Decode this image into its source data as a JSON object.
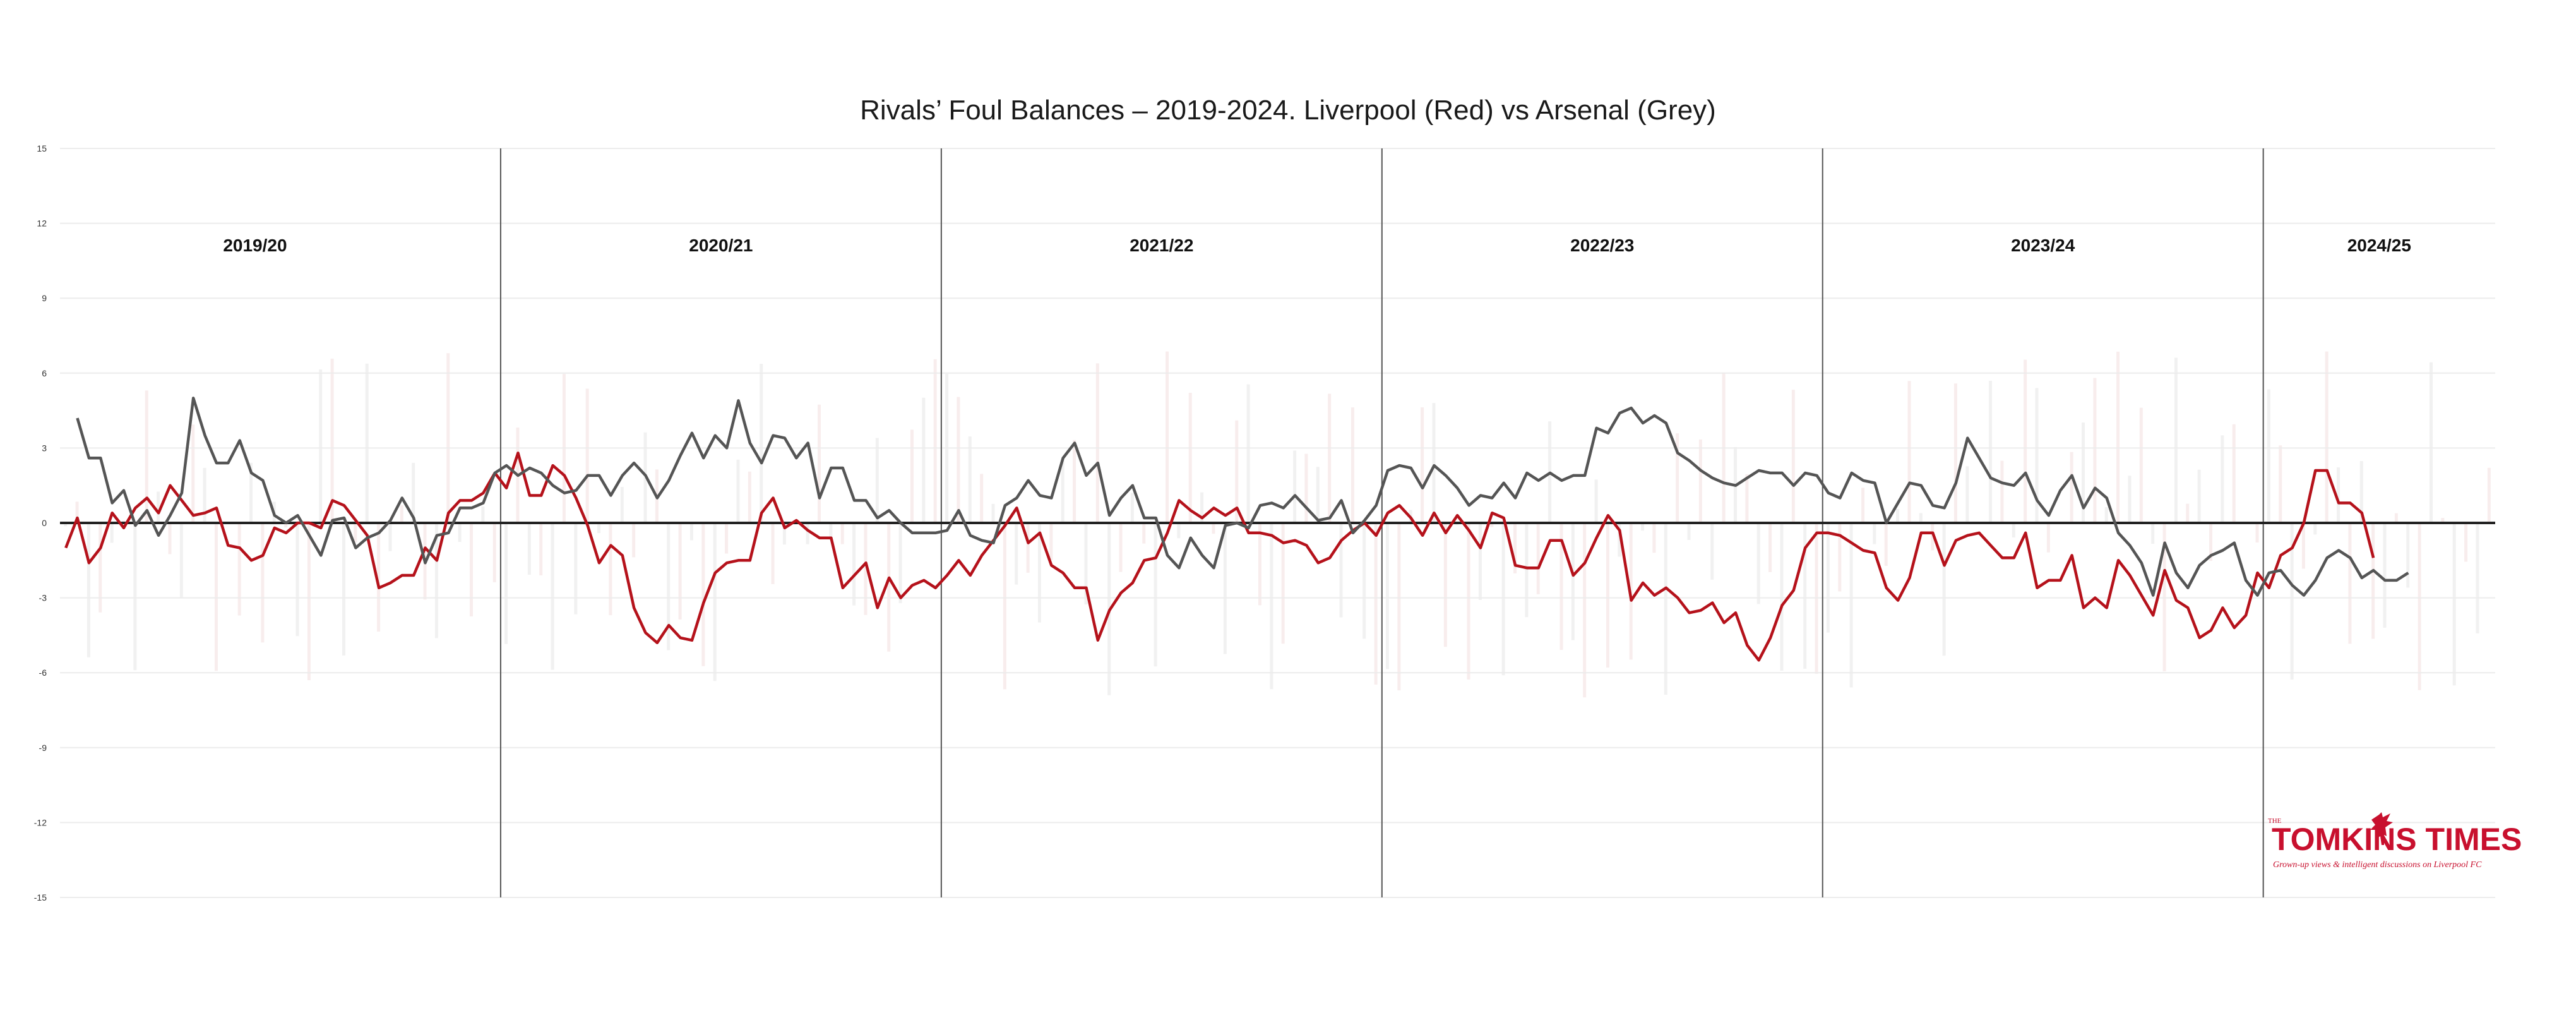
{
  "chart_data": {
    "type": "line",
    "title": "Rivals’ Foul Balances – 2019-2024. Liverpool (Red) vs Arsenal (Grey)",
    "xlabel": "",
    "ylabel": "",
    "ylim": [
      -15,
      15
    ],
    "yticks": [
      15,
      12,
      9,
      6,
      3,
      0,
      -3,
      -6,
      -9,
      -12,
      -15
    ],
    "grid": true,
    "seasons": [
      "2019/20",
      "2020/21",
      "2021/22",
      "2022/23",
      "2023/24",
      "2024/25"
    ],
    "season_boundaries_match_index": [
      38,
      76,
      114,
      152,
      190
    ],
    "total_matches": 210,
    "series": [
      {
        "color": "#b5121b",
        "values": [
          -1.0,
          0.2,
          -1.6,
          -1.0,
          0.4,
          -0.2,
          0.6,
          1.0,
          0.4,
          1.5,
          0.9,
          0.3,
          0.4,
          0.6,
          -0.9,
          -1.0,
          -1.5,
          -1.3,
          -0.2,
          -0.4,
          0.0,
          0.0,
          -0.2,
          0.9,
          0.7,
          0.1,
          -0.5,
          -2.6,
          -2.4,
          -2.1,
          -2.1,
          -1.0,
          -1.5,
          0.4,
          0.9,
          0.9,
          1.2,
          2.0,
          1.4,
          2.8,
          1.1,
          1.1,
          2.3,
          1.9,
          1.0,
          -0.1,
          -1.6,
          -0.9,
          -1.3,
          -3.4,
          -4.4,
          -4.8,
          -4.1,
          -4.6,
          -4.7,
          -3.2,
          -2.0,
          -1.6,
          -1.5,
          -1.5,
          0.4,
          1.0,
          -0.2,
          0.1,
          -0.3,
          -0.6,
          -0.6,
          -2.6,
          -2.1,
          -1.6,
          -3.4,
          -2.2,
          -3.0,
          -2.5,
          -2.3,
          -2.6,
          -2.1,
          -1.5,
          -2.1,
          -1.3,
          -0.7,
          -0.1,
          0.6,
          -0.8,
          -0.4,
          -1.7,
          -2.0,
          -2.6,
          -2.6,
          -4.7,
          -3.5,
          -2.8,
          -2.4,
          -1.5,
          -1.4,
          -0.4,
          0.9,
          0.5,
          0.2,
          0.6,
          0.3,
          0.6,
          -0.4,
          -0.4,
          -0.5,
          -0.8,
          -0.7,
          -0.9,
          -1.6,
          -1.4,
          -0.7,
          -0.3,
          0.0,
          -0.5,
          0.4,
          0.7,
          0.2,
          -0.5,
          0.4,
          -0.4,
          0.3,
          -0.3,
          -1.0,
          0.4,
          0.2,
          -1.7,
          -1.8,
          -1.8,
          -0.7,
          -0.7,
          -2.1,
          -1.6,
          -0.6,
          0.3,
          -0.3,
          -3.1,
          -2.4,
          -2.9,
          -2.6,
          -3.0,
          -3.6,
          -3.5,
          -3.2,
          -4.0,
          -3.6,
          -4.9,
          -5.5,
          -4.6,
          -3.3,
          -2.7,
          -1.0,
          -0.4,
          -0.4,
          -0.5,
          -0.8,
          -1.1,
          -1.2,
          -2.6,
          -3.1,
          -2.2,
          -0.4,
          -0.4,
          -1.7,
          -0.7,
          -0.5,
          -0.4,
          -0.9,
          -1.4,
          -1.4,
          -0.4,
          -2.6,
          -2.3,
          -2.3,
          -1.3,
          -3.4,
          -3.0,
          -3.4,
          -1.5,
          -2.1,
          -2.9,
          -3.7,
          -1.9,
          -3.1,
          -3.4,
          -4.6,
          -4.3,
          -3.4,
          -4.2,
          -3.7,
          -2.0,
          -2.6,
          -1.3,
          -1.0,
          0.0,
          2.1,
          2.1,
          0.8,
          0.8,
          0.4,
          -1.4
        ]
      },
      {
        "color": "#555555",
        "values": [
          4.2,
          2.6,
          2.6,
          0.8,
          1.3,
          -0.1,
          0.5,
          -0.5,
          0.3,
          1.2,
          5.0,
          3.5,
          2.4,
          2.4,
          3.3,
          2.0,
          1.7,
          0.3,
          -0.0,
          0.3,
          -0.5,
          -1.3,
          0.1,
          0.2,
          -1.0,
          -0.6,
          -0.4,
          0.1,
          1.0,
          0.2,
          -1.6,
          -0.5,
          -0.4,
          0.6,
          0.6,
          0.8,
          2.0,
          2.3,
          1.9,
          2.2,
          2.0,
          1.5,
          1.2,
          1.3,
          1.9,
          1.9,
          1.1,
          1.9,
          2.4,
          1.9,
          1.0,
          1.7,
          2.7,
          3.6,
          2.6,
          3.5,
          3.0,
          4.9,
          3.2,
          2.4,
          3.5,
          3.4,
          2.6,
          3.2,
          1.0,
          2.2,
          2.2,
          0.9,
          0.9,
          0.2,
          0.5,
          0.0,
          -0.4,
          -0.4,
          -0.4,
          -0.3,
          0.5,
          -0.5,
          -0.7,
          -0.8,
          0.7,
          1.0,
          1.7,
          1.1,
          1.0,
          2.6,
          3.2,
          1.9,
          2.4,
          0.3,
          1.0,
          1.5,
          0.2,
          0.2,
          -1.3,
          -1.8,
          -0.6,
          -1.3,
          -1.8,
          -0.1,
          0.0,
          -0.2,
          0.7,
          0.8,
          0.6,
          1.1,
          0.6,
          0.1,
          0.2,
          0.9,
          -0.4,
          0.1,
          0.7,
          2.1,
          2.3,
          2.2,
          1.4,
          2.3,
          1.9,
          1.4,
          0.7,
          1.1,
          1.0,
          1.6,
          1.0,
          2.0,
          1.7,
          2.0,
          1.7,
          1.9,
          1.9,
          3.8,
          3.6,
          4.4,
          4.6,
          4.0,
          4.3,
          4.0,
          2.8,
          2.5,
          2.1,
          1.8,
          1.6,
          1.5,
          1.8,
          2.1,
          2.0,
          2.0,
          1.5,
          2.0,
          1.9,
          1.2,
          1.0,
          2.0,
          1.7,
          1.6,
          0.0,
          0.8,
          1.6,
          1.5,
          0.7,
          0.6,
          1.6,
          3.4,
          2.6,
          1.8,
          1.6,
          1.5,
          2.0,
          0.9,
          0.3,
          1.3,
          1.9,
          0.6,
          1.4,
          1.0,
          -0.4,
          -0.9,
          -1.6,
          -2.9,
          -0.8,
          -2.0,
          -2.6,
          -1.7,
          -1.3,
          -1.1,
          -0.8,
          -2.3,
          -2.9,
          -2.0,
          -1.9,
          -2.5,
          -2.9,
          -2.3,
          -1.4,
          -1.1,
          -1.4,
          -2.2,
          -1.9,
          -2.3,
          -2.3,
          -2.0
        ]
      }
    ]
  },
  "logo": {
    "the": "THE",
    "name": "TOMKINS TIMES",
    "tagline": "Grown-up views & intelligent discussions on Liverpool FC",
    "icon": "liverbird-icon"
  }
}
